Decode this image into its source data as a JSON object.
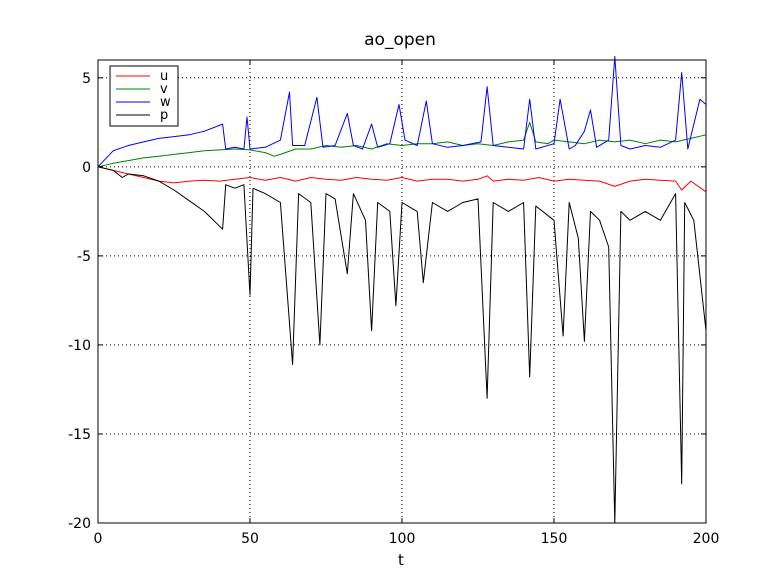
{
  "chart_data": {
    "type": "line",
    "title": "ao_open",
    "xlabel": "t",
    "ylabel": "",
    "xlim": [
      0,
      200
    ],
    "ylim": [
      -20,
      6
    ],
    "xticks": [
      0,
      50,
      100,
      150,
      200
    ],
    "yticks": [
      -20,
      -15,
      -10,
      -5,
      0,
      5
    ],
    "grid": true,
    "legend_position": "top-left",
    "series": [
      {
        "name": "u",
        "color": "#ff0000",
        "points": [
          [
            0,
            0
          ],
          [
            5,
            -0.2
          ],
          [
            10,
            -0.4
          ],
          [
            15,
            -0.6
          ],
          [
            20,
            -0.8
          ],
          [
            25,
            -0.9
          ],
          [
            30,
            -0.8
          ],
          [
            35,
            -0.75
          ],
          [
            40,
            -0.8
          ],
          [
            45,
            -0.7
          ],
          [
            50,
            -0.6
          ],
          [
            55,
            -0.75
          ],
          [
            60,
            -0.6
          ],
          [
            65,
            -0.8
          ],
          [
            70,
            -0.6
          ],
          [
            75,
            -0.7
          ],
          [
            80,
            -0.75
          ],
          [
            85,
            -0.6
          ],
          [
            90,
            -0.7
          ],
          [
            95,
            -0.75
          ],
          [
            100,
            -0.6
          ],
          [
            105,
            -0.8
          ],
          [
            110,
            -0.7
          ],
          [
            115,
            -0.7
          ],
          [
            120,
            -0.8
          ],
          [
            125,
            -0.7
          ],
          [
            128,
            -0.5
          ],
          [
            130,
            -0.8
          ],
          [
            135,
            -0.7
          ],
          [
            140,
            -0.75
          ],
          [
            145,
            -0.6
          ],
          [
            150,
            -0.8
          ],
          [
            155,
            -0.7
          ],
          [
            160,
            -0.75
          ],
          [
            165,
            -0.8
          ],
          [
            170,
            -1.1
          ],
          [
            175,
            -0.8
          ],
          [
            180,
            -0.7
          ],
          [
            185,
            -0.75
          ],
          [
            190,
            -0.8
          ],
          [
            192,
            -1.3
          ],
          [
            195,
            -0.8
          ],
          [
            200,
            -1.4
          ]
        ]
      },
      {
        "name": "v",
        "color": "#008000",
        "points": [
          [
            0,
            0
          ],
          [
            5,
            0.2
          ],
          [
            10,
            0.35
          ],
          [
            15,
            0.5
          ],
          [
            20,
            0.6
          ],
          [
            25,
            0.7
          ],
          [
            30,
            0.8
          ],
          [
            35,
            0.9
          ],
          [
            40,
            0.95
          ],
          [
            45,
            1.0
          ],
          [
            50,
            0.95
          ],
          [
            55,
            0.8
          ],
          [
            58,
            0.6
          ],
          [
            60,
            0.7
          ],
          [
            65,
            1.0
          ],
          [
            70,
            1.0
          ],
          [
            75,
            1.2
          ],
          [
            80,
            1.1
          ],
          [
            85,
            1.2
          ],
          [
            90,
            1.0
          ],
          [
            95,
            1.3
          ],
          [
            100,
            1.2
          ],
          [
            105,
            1.3
          ],
          [
            110,
            1.3
          ],
          [
            115,
            1.4
          ],
          [
            120,
            1.2
          ],
          [
            125,
            1.3
          ],
          [
            130,
            1.2
          ],
          [
            135,
            1.4
          ],
          [
            140,
            1.5
          ],
          [
            142,
            2.5
          ],
          [
            144,
            1.4
          ],
          [
            148,
            1.3
          ],
          [
            150,
            1.5
          ],
          [
            155,
            1.4
          ],
          [
            160,
            1.3
          ],
          [
            165,
            1.5
          ],
          [
            170,
            1.4
          ],
          [
            175,
            1.5
          ],
          [
            180,
            1.3
          ],
          [
            185,
            1.5
          ],
          [
            190,
            1.4
          ],
          [
            195,
            1.6
          ],
          [
            200,
            1.8
          ]
        ]
      },
      {
        "name": "w",
        "color": "#0000ff",
        "points": [
          [
            0,
            0
          ],
          [
            5,
            0.9
          ],
          [
            10,
            1.2
          ],
          [
            15,
            1.4
          ],
          [
            20,
            1.6
          ],
          [
            25,
            1.7
          ],
          [
            30,
            1.8
          ],
          [
            35,
            2.0
          ],
          [
            41,
            2.4
          ],
          [
            42,
            1.0
          ],
          [
            45,
            1.1
          ],
          [
            48,
            1.0
          ],
          [
            49,
            2.8
          ],
          [
            50,
            1.0
          ],
          [
            55,
            1.1
          ],
          [
            60,
            1.5
          ],
          [
            63,
            4.2
          ],
          [
            64,
            1.2
          ],
          [
            68,
            1.2
          ],
          [
            72,
            3.9
          ],
          [
            74,
            1.1
          ],
          [
            78,
            1.2
          ],
          [
            82,
            3.0
          ],
          [
            84,
            1.2
          ],
          [
            87,
            1.0
          ],
          [
            90,
            2.4
          ],
          [
            92,
            1.1
          ],
          [
            96,
            1.3
          ],
          [
            99,
            3.5
          ],
          [
            101,
            1.5
          ],
          [
            105,
            1.2
          ],
          [
            108,
            3.7
          ],
          [
            110,
            1.3
          ],
          [
            115,
            1.1
          ],
          [
            120,
            1.2
          ],
          [
            126,
            1.4
          ],
          [
            128,
            4.5
          ],
          [
            130,
            1.2
          ],
          [
            135,
            1.1
          ],
          [
            140,
            1.0
          ],
          [
            142,
            3.8
          ],
          [
            144,
            1.0
          ],
          [
            150,
            1.3
          ],
          [
            152,
            3.8
          ],
          [
            155,
            1.0
          ],
          [
            157,
            1.2
          ],
          [
            160,
            2.0
          ],
          [
            162,
            3.2
          ],
          [
            164,
            1.1
          ],
          [
            168,
            1.5
          ],
          [
            170,
            6.2
          ],
          [
            172,
            1.2
          ],
          [
            175,
            1.0
          ],
          [
            180,
            1.2
          ],
          [
            185,
            1.1
          ],
          [
            190,
            1.5
          ],
          [
            192,
            5.3
          ],
          [
            194,
            1.0
          ],
          [
            198,
            3.8
          ],
          [
            200,
            3.5
          ]
        ]
      },
      {
        "name": "p",
        "color": "#000000",
        "points": [
          [
            0,
            0
          ],
          [
            5,
            -0.2
          ],
          [
            8,
            -0.6
          ],
          [
            10,
            -0.4
          ],
          [
            15,
            -0.5
          ],
          [
            20,
            -0.8
          ],
          [
            25,
            -1.3
          ],
          [
            30,
            -1.9
          ],
          [
            35,
            -2.5
          ],
          [
            41,
            -3.5
          ],
          [
            42,
            -1.0
          ],
          [
            45,
            -1.2
          ],
          [
            48,
            -1.0
          ],
          [
            50,
            -7.2
          ],
          [
            51,
            -1.2
          ],
          [
            55,
            -1.5
          ],
          [
            60,
            -2.0
          ],
          [
            64,
            -11.1
          ],
          [
            66,
            -1.5
          ],
          [
            70,
            -2.0
          ],
          [
            73,
            -10.0
          ],
          [
            75,
            -1.5
          ],
          [
            78,
            -1.8
          ],
          [
            82,
            -6.0
          ],
          [
            84,
            -1.5
          ],
          [
            88,
            -3.0
          ],
          [
            90,
            -9.2
          ],
          [
            92,
            -2.0
          ],
          [
            96,
            -2.5
          ],
          [
            98,
            -7.8
          ],
          [
            100,
            -2.0
          ],
          [
            105,
            -2.5
          ],
          [
            107,
            -6.5
          ],
          [
            110,
            -2.0
          ],
          [
            115,
            -2.5
          ],
          [
            120,
            -2.0
          ],
          [
            125,
            -1.8
          ],
          [
            128,
            -13.0
          ],
          [
            130,
            -2.0
          ],
          [
            135,
            -2.5
          ],
          [
            140,
            -2.0
          ],
          [
            142,
            -11.8
          ],
          [
            144,
            -2.2
          ],
          [
            150,
            -3.0
          ],
          [
            153,
            -9.5
          ],
          [
            155,
            -2.0
          ],
          [
            158,
            -4.0
          ],
          [
            160,
            -9.8
          ],
          [
            162,
            -2.5
          ],
          [
            165,
            -3.0
          ],
          [
            168,
            -4.5
          ],
          [
            170,
            -20.0
          ],
          [
            172,
            -2.5
          ],
          [
            175,
            -3.0
          ],
          [
            180,
            -2.5
          ],
          [
            185,
            -3.0
          ],
          [
            190,
            -1.5
          ],
          [
            192,
            -17.8
          ],
          [
            193,
            -2.0
          ],
          [
            196,
            -3.0
          ],
          [
            200,
            -9.2
          ]
        ]
      }
    ]
  }
}
